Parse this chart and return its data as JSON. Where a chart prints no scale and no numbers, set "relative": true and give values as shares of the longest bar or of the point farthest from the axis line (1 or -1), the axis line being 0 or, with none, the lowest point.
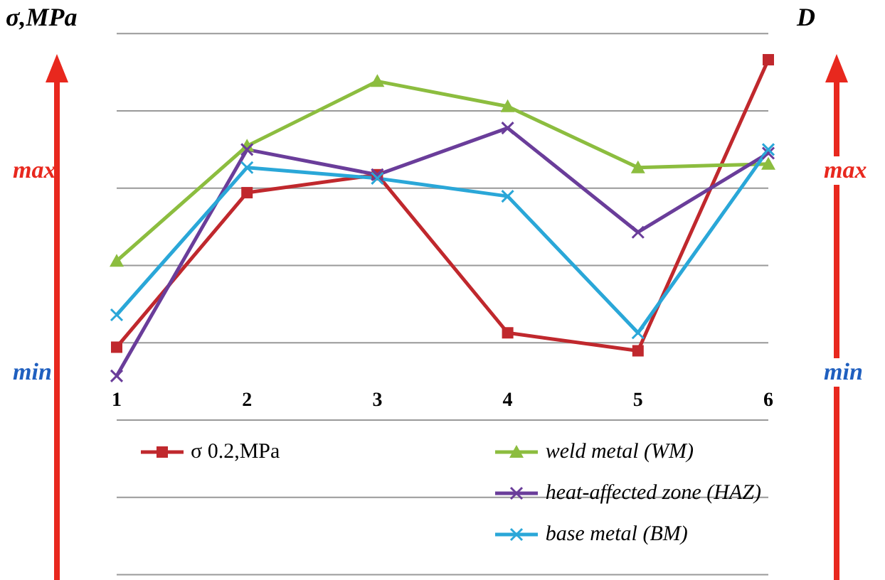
{
  "chart_data": {
    "type": "line",
    "relative": true,
    "ylabel": "σ,MPa",
    "y2label": "D",
    "categories": [
      "1",
      "2",
      "3",
      "4",
      "5",
      "6"
    ],
    "series": [
      {
        "name": "σ 0.2,MPa",
        "color": "#c0282d",
        "marker": "square",
        "values": [
          0.2,
          0.63,
          0.68,
          0.24,
          0.19,
          1
        ]
      },
      {
        "name": "weld metal (WM)",
        "color": "#8cbd3f",
        "marker": "triangle",
        "values": [
          0.44,
          0.76,
          0.94,
          0.87,
          0.7,
          0.71
        ]
      },
      {
        "name": "heat-affected zone (HAZ)",
        "color": "#6a3d9a",
        "marker": "cross",
        "values": [
          0.12,
          0.75,
          0.68,
          0.81,
          0.52,
          0.74
        ]
      },
      {
        "name": "base metal (BM)",
        "color": "#2aa7d8",
        "marker": "cross",
        "values": [
          0.29,
          0.7,
          0.67,
          0.62,
          0.24,
          0.75
        ]
      }
    ],
    "annotations": [
      "max",
      "min",
      "max",
      "min"
    ],
    "grid": true,
    "legend": "bottom"
  }
}
